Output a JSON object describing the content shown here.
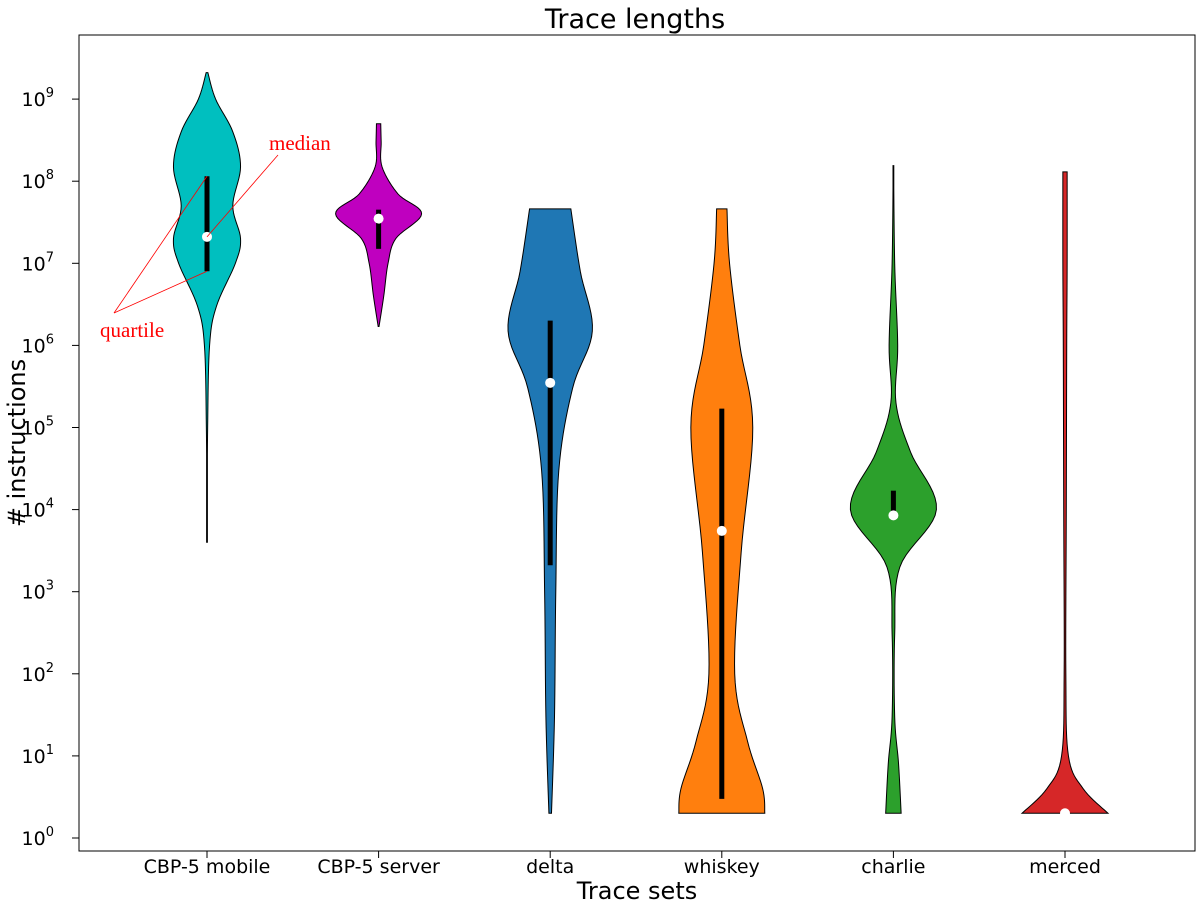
{
  "chart_data": {
    "type": "violin",
    "title": "Trace lengths",
    "xlabel": "Trace sets",
    "ylabel": "# instructions",
    "yscale": "log",
    "ylim": [
      1,
      5000000000.0
    ],
    "yticks": [
      {
        "value": 1,
        "base": "10",
        "exp": "0"
      },
      {
        "value": 10,
        "base": "10",
        "exp": "1"
      },
      {
        "value": 100,
        "base": "10",
        "exp": "2"
      },
      {
        "value": 1000,
        "base": "10",
        "exp": "3"
      },
      {
        "value": 10000,
        "base": "10",
        "exp": "4"
      },
      {
        "value": 100000,
        "base": "10",
        "exp": "5"
      },
      {
        "value": 1000000,
        "base": "10",
        "exp": "6"
      },
      {
        "value": 10000000,
        "base": "10",
        "exp": "7"
      },
      {
        "value": 100000000,
        "base": "10",
        "exp": "8"
      },
      {
        "value": 1000000000,
        "base": "10",
        "exp": "9"
      }
    ],
    "grid": false,
    "series": [
      {
        "name": "CBP-5 mobile",
        "color": "#00bfbf",
        "min": 4000,
        "max": 2100000000,
        "q1": 8000000,
        "median": 21000000,
        "q3": 115000000,
        "profile": [
          [
            4000,
            0.003
          ],
          [
            10000,
            0.005
          ],
          [
            100000,
            0.015
          ],
          [
            1000000,
            0.06
          ],
          [
            3000000,
            0.22
          ],
          [
            10000000,
            0.66
          ],
          [
            20000000,
            0.78
          ],
          [
            50000000,
            0.6
          ],
          [
            150000000,
            0.78
          ],
          [
            400000000,
            0.6
          ],
          [
            1000000000,
            0.2
          ],
          [
            2100000000,
            0.02
          ]
        ]
      },
      {
        "name": "CBP-5 server",
        "color": "#bf00bf",
        "min": 1700000,
        "max": 500000000,
        "q1": 15000000,
        "median": 35000000,
        "q3": 45000000,
        "profile": [
          [
            1700000,
            0.01
          ],
          [
            4000000,
            0.12
          ],
          [
            10000000,
            0.22
          ],
          [
            20000000,
            0.4
          ],
          [
            40000000,
            1.0
          ],
          [
            70000000,
            0.45
          ],
          [
            150000000,
            0.08
          ],
          [
            300000000,
            0.06
          ],
          [
            500000000,
            0.05
          ]
        ]
      },
      {
        "name": "delta",
        "color": "#1f77b4",
        "min": 2,
        "max": 46000000,
        "q1": 2100,
        "median": 350000,
        "q3": 2000000,
        "profile": [
          [
            2,
            0.03
          ],
          [
            30,
            0.1
          ],
          [
            1000,
            0.13
          ],
          [
            30000,
            0.2
          ],
          [
            300000,
            0.52
          ],
          [
            1500000,
            0.98
          ],
          [
            8000000,
            0.7
          ],
          [
            46000000,
            0.48
          ]
        ]
      },
      {
        "name": "whiskey",
        "color": "#ff7f0e",
        "min": 2,
        "max": 46000000,
        "q1": 3,
        "median": 5500,
        "q3": 170000,
        "profile": [
          [
            2,
            1.0
          ],
          [
            4,
            0.95
          ],
          [
            15,
            0.6
          ],
          [
            100,
            0.3
          ],
          [
            3000,
            0.45
          ],
          [
            100000,
            0.72
          ],
          [
            1000000,
            0.42
          ],
          [
            10000000,
            0.18
          ],
          [
            46000000,
            0.12
          ]
        ]
      },
      {
        "name": "charlie",
        "color": "#2ca02c",
        "min": 2,
        "max": 155000000,
        "q1": 8000,
        "median": 8500,
        "q3": 17000,
        "profile": [
          [
            2,
            0.18
          ],
          [
            8,
            0.12
          ],
          [
            30,
            0.03
          ],
          [
            300,
            0.03
          ],
          [
            2000,
            0.15
          ],
          [
            10000,
            1.0
          ],
          [
            50000,
            0.4
          ],
          [
            200000,
            0.06
          ],
          [
            1000000,
            0.1
          ],
          [
            10000000,
            0.03
          ],
          [
            155000000,
            0.005
          ]
        ]
      },
      {
        "name": "merced",
        "color": "#d62728",
        "min": 2,
        "max": 130000000,
        "q1": 2,
        "median": 2,
        "q3": 2,
        "profile": [
          [
            2,
            1.0
          ],
          [
            4,
            0.42
          ],
          [
            10,
            0.08
          ],
          [
            100,
            0.02
          ],
          [
            10000,
            0.03
          ],
          [
            1000000,
            0.04
          ],
          [
            10000000,
            0.05
          ],
          [
            130000000,
            0.05
          ]
        ]
      }
    ],
    "annotations": [
      {
        "text": "median",
        "color": "#ff0000"
      },
      {
        "text": "quartile",
        "color": "#ff0000"
      }
    ]
  }
}
